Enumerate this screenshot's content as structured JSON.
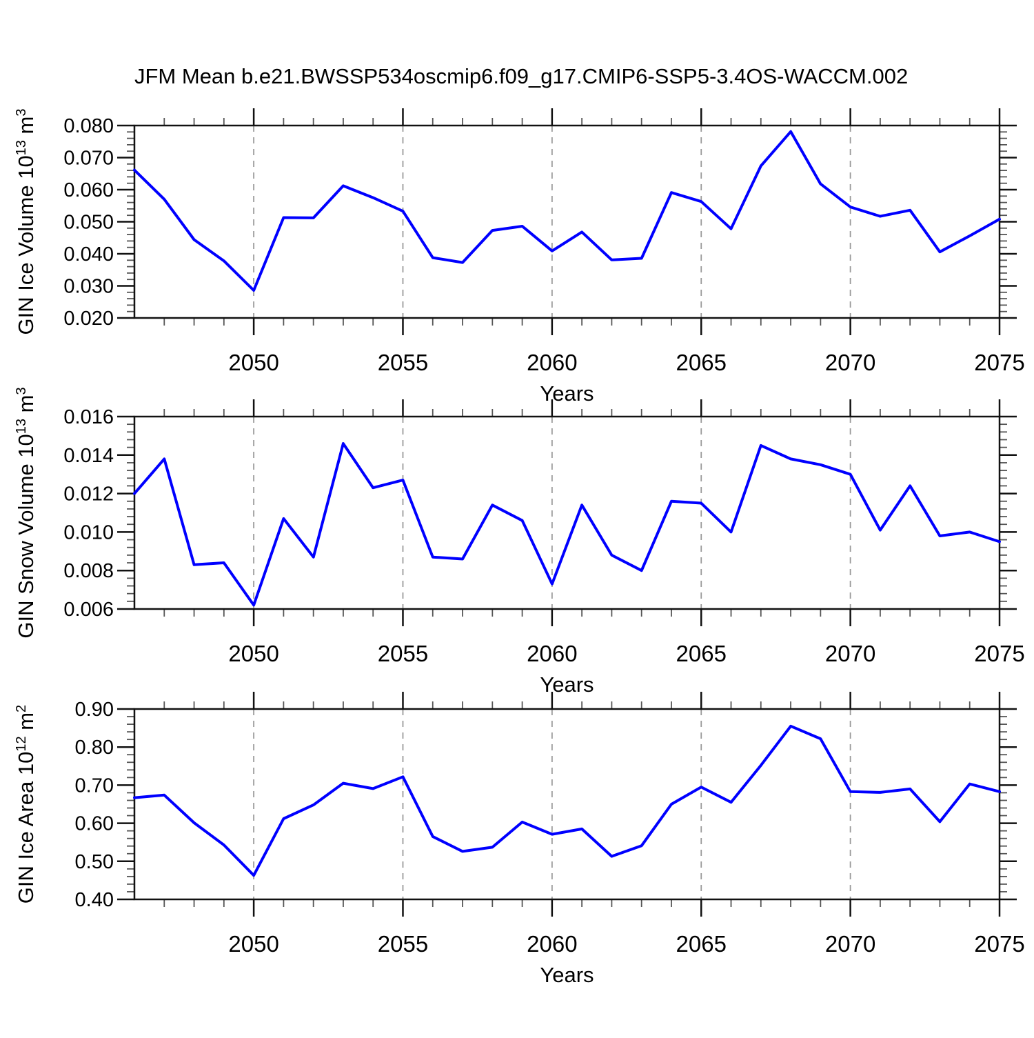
{
  "title": "JFM Mean b.e21.BWSSP534oscmip6.f09_g17.CMIP6-SSP5-3.4OS-WACCM.002",
  "colors": {
    "line": "#0000ff",
    "grid": "#9a9a9a",
    "axis": "#111111",
    "minor_tick": "#555555",
    "text": "#000000",
    "background": "#ffffff"
  },
  "xaxis_label": "Years",
  "chart_data": [
    {
      "type": "line",
      "panel": "ice-volume",
      "ylabel_plain": "GIN Ice Volume 10^13 m^3",
      "ylabel_segments": [
        {
          "t": "GIN Ice Volume 10",
          "sup": false
        },
        {
          "t": "13",
          "sup": true
        },
        {
          "t": " m",
          "sup": false
        },
        {
          "t": "3",
          "sup": true
        }
      ],
      "xlabel": "Years",
      "xlim": [
        2046,
        2075
      ],
      "xticks": [
        2050,
        2055,
        2060,
        2065,
        2070,
        2075
      ],
      "grid_x": [
        2050,
        2055,
        2060,
        2065,
        2070
      ],
      "ylim": [
        0.02,
        0.08
      ],
      "ytick_step": 0.01,
      "yminor_divisions": 5,
      "ydecimals": 3,
      "x": [
        2046,
        2047,
        2048,
        2049,
        2050,
        2051,
        2052,
        2053,
        2054,
        2055,
        2056,
        2057,
        2058,
        2059,
        2060,
        2061,
        2062,
        2063,
        2064,
        2065,
        2066,
        2067,
        2068,
        2069,
        2070,
        2071,
        2072,
        2073,
        2074,
        2075
      ],
      "values": [
        0.0661,
        0.057,
        0.0444,
        0.0378,
        0.0286,
        0.0513,
        0.0512,
        0.0612,
        0.0575,
        0.0533,
        0.0388,
        0.0373,
        0.0473,
        0.0486,
        0.0409,
        0.0468,
        0.0381,
        0.0386,
        0.0591,
        0.0563,
        0.0478,
        0.0674,
        0.0781,
        0.0618,
        0.0546,
        0.0517,
        0.0536,
        0.0406,
        0.0456,
        0.0508
      ]
    },
    {
      "type": "line",
      "panel": "snow-volume",
      "ylabel_plain": "GIN Snow Volume 10^13 m^3",
      "ylabel_segments": [
        {
          "t": "GIN Snow Volume 10",
          "sup": false
        },
        {
          "t": "13",
          "sup": true
        },
        {
          "t": " m",
          "sup": false
        },
        {
          "t": "3",
          "sup": true
        }
      ],
      "xlabel": "Years",
      "xlim": [
        2046,
        2075
      ],
      "xticks": [
        2050,
        2055,
        2060,
        2065,
        2070,
        2075
      ],
      "grid_x": [
        2050,
        2055,
        2060,
        2065,
        2070
      ],
      "ylim": [
        0.006,
        0.016
      ],
      "ytick_step": 0.002,
      "yminor_divisions": 5,
      "ydecimals": 3,
      "x": [
        2046,
        2047,
        2048,
        2049,
        2050,
        2051,
        2052,
        2053,
        2054,
        2055,
        2056,
        2057,
        2058,
        2059,
        2060,
        2061,
        2062,
        2063,
        2064,
        2065,
        2066,
        2067,
        2068,
        2069,
        2070,
        2071,
        2072,
        2073,
        2074,
        2075
      ],
      "values": [
        0.012,
        0.0138,
        0.0083,
        0.0084,
        0.0062,
        0.0107,
        0.0087,
        0.0146,
        0.0123,
        0.0127,
        0.0087,
        0.0086,
        0.0114,
        0.0106,
        0.0073,
        0.0114,
        0.0088,
        0.008,
        0.0116,
        0.0115,
        0.01,
        0.0145,
        0.0138,
        0.0135,
        0.013,
        0.0101,
        0.0124,
        0.0098,
        0.01,
        0.0095
      ]
    },
    {
      "type": "line",
      "panel": "ice-area",
      "ylabel_plain": "GIN Ice Area 10^12 m^2",
      "ylabel_segments": [
        {
          "t": "GIN Ice Area 10",
          "sup": false
        },
        {
          "t": "12",
          "sup": true
        },
        {
          "t": " m",
          "sup": false
        },
        {
          "t": "2",
          "sup": true
        }
      ],
      "xlabel": "Years",
      "xlim": [
        2046,
        2075
      ],
      "xticks": [
        2050,
        2055,
        2060,
        2065,
        2070,
        2075
      ],
      "grid_x": [
        2050,
        2055,
        2060,
        2065,
        2070
      ],
      "ylim": [
        0.4,
        0.9
      ],
      "ytick_step": 0.1,
      "yminor_divisions": 5,
      "ydecimals": 2,
      "x": [
        2046,
        2047,
        2048,
        2049,
        2050,
        2051,
        2052,
        2053,
        2054,
        2055,
        2056,
        2057,
        2058,
        2059,
        2060,
        2061,
        2062,
        2063,
        2064,
        2065,
        2066,
        2067,
        2068,
        2069,
        2070,
        2071,
        2072,
        2073,
        2074,
        2075
      ],
      "values": [
        0.667,
        0.674,
        0.601,
        0.543,
        0.463,
        0.612,
        0.648,
        0.705,
        0.691,
        0.722,
        0.565,
        0.526,
        0.537,
        0.603,
        0.571,
        0.585,
        0.513,
        0.541,
        0.65,
        0.695,
        0.655,
        0.752,
        0.855,
        0.822,
        0.683,
        0.681,
        0.69,
        0.604,
        0.703,
        0.683
      ]
    }
  ]
}
